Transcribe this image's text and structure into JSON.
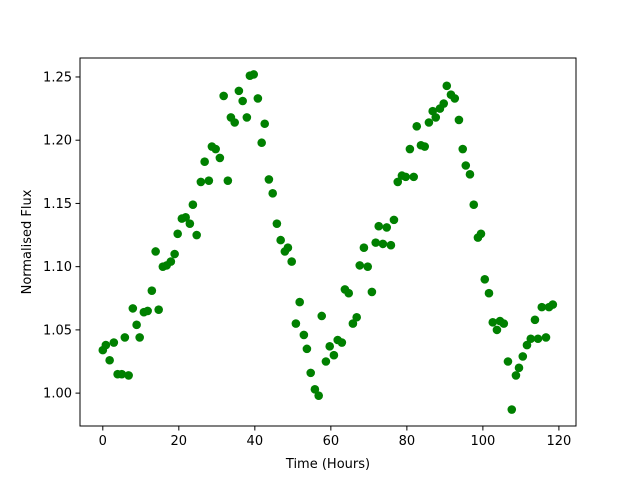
{
  "chart_data": {
    "type": "scatter",
    "xlabel": "Time (Hours)",
    "ylabel": "Normalised Flux",
    "color": "#008000",
    "xlim": [
      -6,
      124.5
    ],
    "ylim": [
      0.974,
      1.265
    ],
    "xticks": [
      0,
      20,
      40,
      60,
      80,
      100,
      120
    ],
    "yticks": [
      {
        "value": 1,
        "label": "1.00"
      },
      1.05,
      {
        "value": 1.1,
        "label": "1.10"
      },
      1.15,
      {
        "value": 1.2,
        "label": "1.20"
      },
      1.25
    ],
    "grid": false,
    "x": [
      0,
      0.8,
      1.8,
      2.9,
      3.9,
      5,
      5.8,
      6.8,
      7.9,
      8.9,
      9.7,
      10.8,
      11.8,
      12.9,
      13.9,
      14.7,
      15.8,
      16.8,
      17.9,
      18.9,
      19.7,
      20.8,
      21.8,
      22.9,
      23.7,
      24.7,
      25.8,
      26.8,
      27.9,
      28.7,
      29.7,
      30.8,
      31.8,
      32.9,
      33.7,
      34.7,
      35.8,
      36.8,
      37.9,
      38.7,
      39.7,
      40.8,
      41.8,
      42.6,
      43.7,
      44.7,
      45.8,
      46.8,
      47.9,
      48.7,
      49.7,
      50.8,
      51.8,
      52.9,
      53.7,
      54.7,
      55.8,
      56.8,
      57.6,
      58.7,
      59.7,
      60.8,
      61.8,
      62.9,
      63.7,
      64.7,
      65.8,
      66.8,
      67.6,
      68.7,
      69.7,
      70.8,
      71.8,
      72.6,
      73.7,
      74.7,
      75.8,
      76.6,
      77.6,
      78.7,
      79.7,
      80.8,
      81.8,
      82.6,
      83.7,
      84.7,
      85.8,
      86.8,
      87.6,
      88.7,
      89.7,
      90.5,
      91.6,
      92.6,
      93.7,
      94.7,
      95.5,
      96.6,
      97.6,
      98.7,
      99.5,
      100.5,
      101.6,
      102.6,
      103.7,
      104.5,
      105.5,
      106.6,
      107.6,
      108.7,
      109.5,
      110.5,
      111.6,
      112.6,
      113.7,
      114.5,
      115.5,
      116.6,
      117.4,
      118.4
    ],
    "values": [
      1.034,
      1.038,
      1.026,
      1.04,
      1.015,
      1.015,
      1.044,
      1.014,
      1.067,
      1.054,
      1.044,
      1.064,
      1.065,
      1.081,
      1.112,
      1.066,
      1.1,
      1.101,
      1.104,
      1.11,
      1.126,
      1.138,
      1.139,
      1.134,
      1.149,
      1.125,
      1.167,
      1.183,
      1.168,
      1.195,
      1.193,
      1.186,
      1.235,
      1.168,
      1.218,
      1.214,
      1.239,
      1.231,
      1.218,
      1.251,
      1.252,
      1.233,
      1.198,
      1.213,
      1.169,
      1.158,
      1.134,
      1.121,
      1.112,
      1.115,
      1.104,
      1.055,
      1.072,
      1.046,
      1.035,
      1.016,
      1.003,
      0.998,
      1.061,
      1.025,
      1.037,
      1.03,
      1.042,
      1.04,
      1.082,
      1.079,
      1.055,
      1.06,
      1.101,
      1.115,
      1.1,
      1.08,
      1.119,
      1.132,
      1.118,
      1.131,
      1.117,
      1.137,
      1.167,
      1.172,
      1.171,
      1.193,
      1.171,
      1.211,
      1.196,
      1.195,
      1.214,
      1.223,
      1.218,
      1.225,
      1.229,
      1.243,
      1.236,
      1.233,
      1.216,
      1.193,
      1.18,
      1.173,
      1.149,
      1.123,
      1.126,
      1.09,
      1.079,
      1.056,
      1.05,
      1.057,
      1.055,
      1.025,
      0.987,
      1.014,
      1.02,
      1.029,
      1.038,
      1.043,
      1.058,
      1.043,
      1.068,
      1.044,
      1.068,
      1.07
    ]
  }
}
